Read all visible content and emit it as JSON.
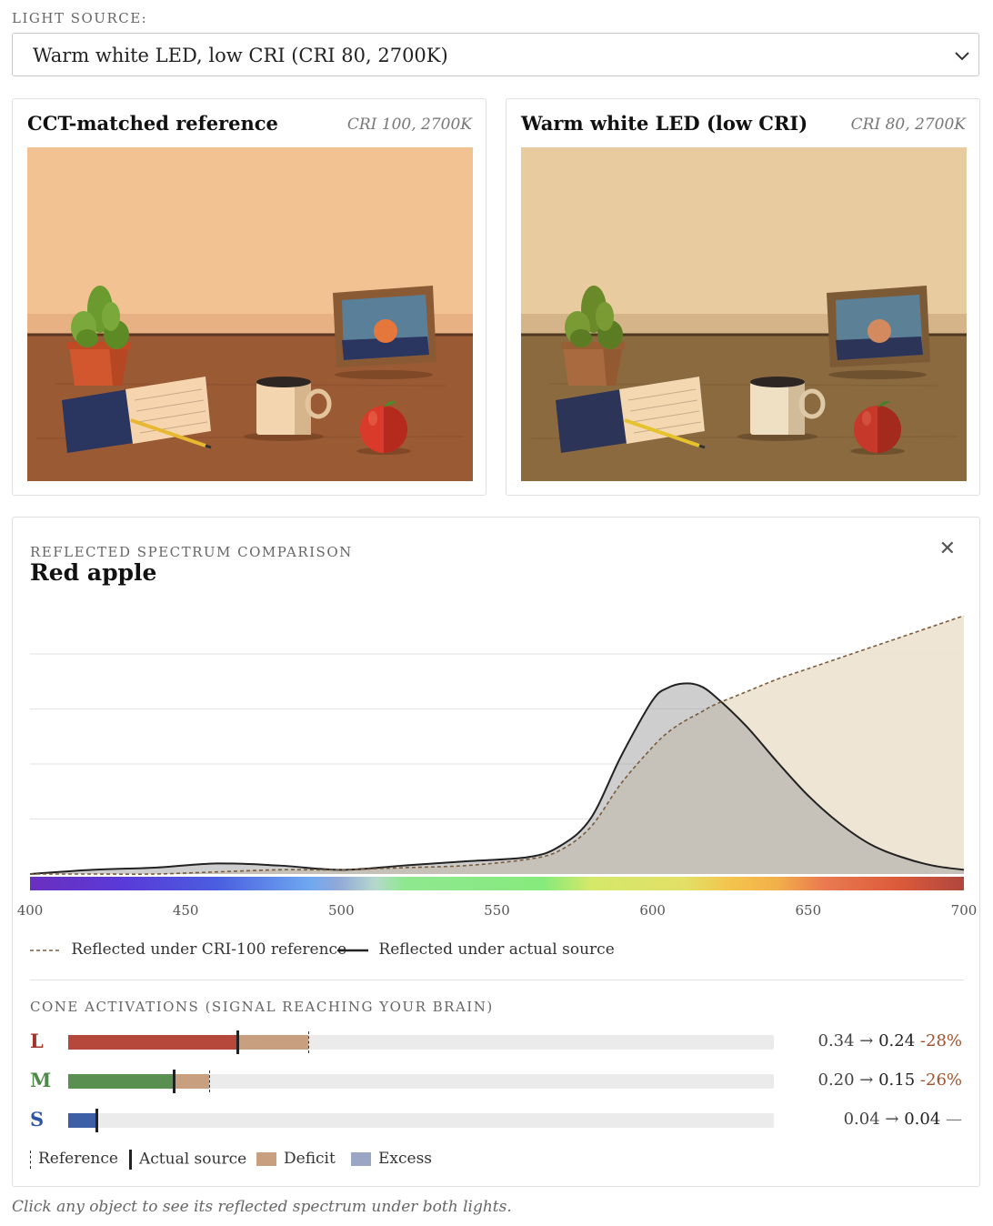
{
  "light_source": {
    "label": "LIGHT SOURCE:",
    "selected": "Warm white LED, low CRI (CRI 80, 2700K)",
    "chevron_icon": "chevron-down-icon"
  },
  "panels": [
    {
      "title": "CCT-matched reference",
      "subtitle": "CRI 100, 2700K"
    },
    {
      "title": "Warm white LED (low CRI)",
      "subtitle": "CRI 80, 2700K"
    }
  ],
  "spectrum": {
    "kicker": "REFLECTED SPECTRUM COMPARISON",
    "title": "Red apple",
    "close_icon": "close-icon",
    "close_glyph": "✕",
    "legend_reference": "Reflected under CRI-100 reference",
    "legend_actual": "Reflected under actual source"
  },
  "chart_data": {
    "type": "area",
    "x_range": [
      400,
      700
    ],
    "x_ticks": [
      "400",
      "450",
      "500",
      "550",
      "600",
      "650",
      "700"
    ],
    "x": [
      400,
      420,
      440,
      460,
      480,
      500,
      520,
      540,
      560,
      570,
      580,
      590,
      600,
      605,
      610,
      615,
      620,
      630,
      640,
      650,
      660,
      670,
      680,
      690,
      700
    ],
    "series": [
      {
        "name": "Reflected under CRI-100 reference",
        "values": [
          0.0,
          0.0,
          0.0,
          0.01,
          0.02,
          0.02,
          0.03,
          0.04,
          0.07,
          0.11,
          0.22,
          0.43,
          0.6,
          0.67,
          0.72,
          0.76,
          0.8,
          0.86,
          0.92,
          0.97,
          1.02,
          1.07,
          1.12,
          1.17,
          1.22
        ]
      },
      {
        "name": "Reflected under actual source",
        "values": [
          0.0,
          0.02,
          0.03,
          0.05,
          0.04,
          0.02,
          0.04,
          0.06,
          0.08,
          0.13,
          0.26,
          0.56,
          0.82,
          0.88,
          0.9,
          0.89,
          0.84,
          0.7,
          0.53,
          0.37,
          0.24,
          0.14,
          0.08,
          0.04,
          0.02
        ]
      }
    ],
    "gridlines": 4,
    "colors": {
      "reference": "#7a5c3e",
      "actual": "#222222",
      "reference_fill": "#ede4d2",
      "actual_fill": "#cfcfcf"
    }
  },
  "cones": {
    "kicker": "CONE ACTIVATIONS (SIGNAL REACHING YOUR BRAIN)",
    "arrow": "→",
    "items": [
      {
        "letter": "L",
        "color": "#a0342a",
        "bar": "#b5483a",
        "reference": 0.34,
        "actual": 0.24,
        "before": "0.34",
        "after": "0.24",
        "change": "-28%"
      },
      {
        "letter": "M",
        "color": "#4f8a4a",
        "bar": "#5a8f52",
        "reference": 0.2,
        "actual": 0.15,
        "before": "0.20",
        "after": "0.15",
        "change": "-26%"
      },
      {
        "letter": "S",
        "color": "#2f55a5",
        "bar": "#3c5fa6",
        "reference": 0.04,
        "actual": 0.04,
        "before": "0.04",
        "after": "0.04",
        "change": "—"
      }
    ],
    "scale_max": 1.0,
    "legend": {
      "reference": "Reference",
      "actual": "Actual source",
      "deficit": "Deficit",
      "excess": "Excess"
    },
    "colors": {
      "deficit": "#c9a07f",
      "excess": "#9aa6c3"
    }
  },
  "footnote": "Click any object to see its reflected spectrum under both lights."
}
